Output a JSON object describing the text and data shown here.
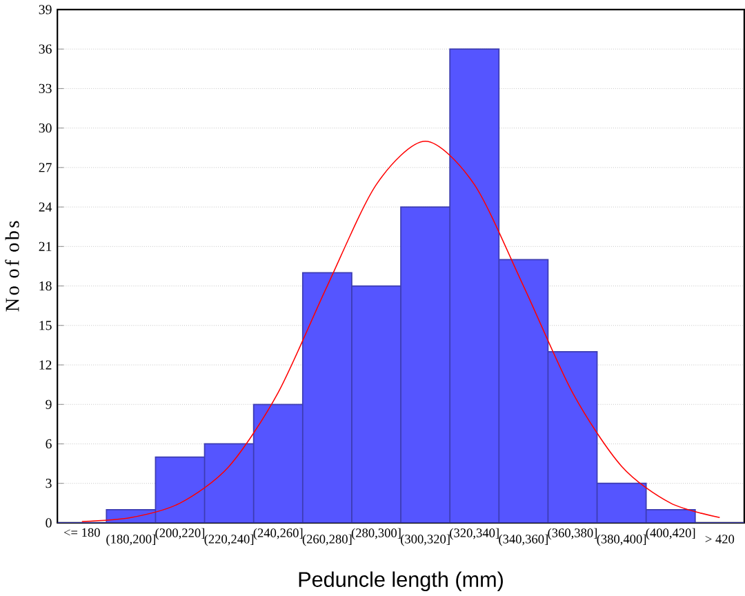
{
  "chart_data": {
    "type": "bar",
    "xlabel": "Peduncle length (mm)",
    "ylabel": "No of obs",
    "categories": [
      "<= 180",
      "(180,200]",
      "(200,220]",
      "(220,240]",
      "(240,260]",
      "(260,280]",
      "(280,300]",
      "(300,320]",
      "(320,340]",
      "(340,360]",
      "(360,380]",
      "(380,400]",
      "(400,420]",
      "> 420"
    ],
    "ylim": [
      0,
      39
    ],
    "yticks": [
      0,
      3,
      6,
      9,
      12,
      15,
      18,
      21,
      24,
      27,
      30,
      33,
      36,
      39
    ],
    "grid": "y",
    "series": [
      {
        "color": "#5555ff",
        "values": [
          0,
          1,
          5,
          6,
          9,
          19,
          18,
          24,
          36,
          20,
          13,
          3,
          1,
          0
        ]
      },
      {
        "type": "line",
        "color": "#ff0000",
        "values": [
          0.1,
          0.4,
          1.5,
          4.3,
          9.9,
          18,
          25.7,
          29,
          25.7,
          18,
          9.9,
          4.3,
          1.5,
          0.4
        ]
      }
    ]
  }
}
